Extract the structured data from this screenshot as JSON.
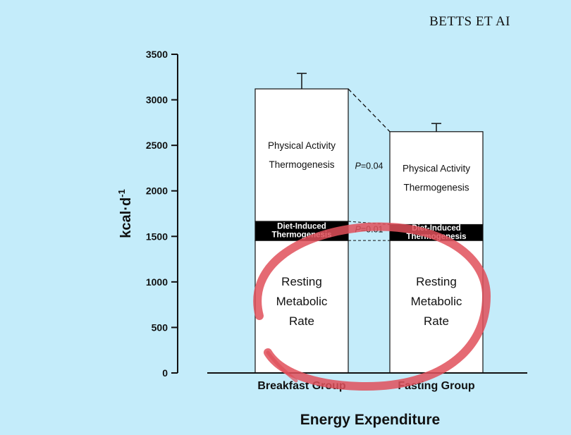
{
  "header": {
    "text": "BETTS ET AI"
  },
  "chart_data": {
    "type": "bar",
    "stacked": true,
    "ylabel": "kcal·d",
    "ylabel_superscript": "-1",
    "xlabel": "Energy Expenditure",
    "ylim": [
      0,
      3500
    ],
    "yticks": [
      0,
      500,
      1000,
      1500,
      2000,
      2500,
      3000,
      3500
    ],
    "categories": [
      "Breakfast Group",
      "Fasting Group"
    ],
    "series": [
      {
        "name": "Resting Metabolic Rate",
        "lines": [
          "Resting",
          "Metabolic",
          "Rate"
        ],
        "values": [
          1455,
          1455
        ],
        "fill": "#ffffff"
      },
      {
        "name": "Diet-Induced Thermogenesis",
        "lines": [
          "Diet-Induced",
          "Thermogenesis"
        ],
        "values": [
          210,
          175
        ],
        "fill": "#000000"
      },
      {
        "name": "Physical Activity Thermogenesis",
        "lines": [
          "Physical Activity",
          "Thermogenesis"
        ],
        "values": [
          1455,
          1020
        ],
        "fill": "#ffffff"
      }
    ],
    "error_bars": [
      170,
      90
    ],
    "annotations": [
      {
        "italic": "P",
        "rest": "=0.04"
      },
      {
        "italic": "P",
        "rest": "=0.01"
      }
    ],
    "highlight_color": "#e0505a"
  }
}
